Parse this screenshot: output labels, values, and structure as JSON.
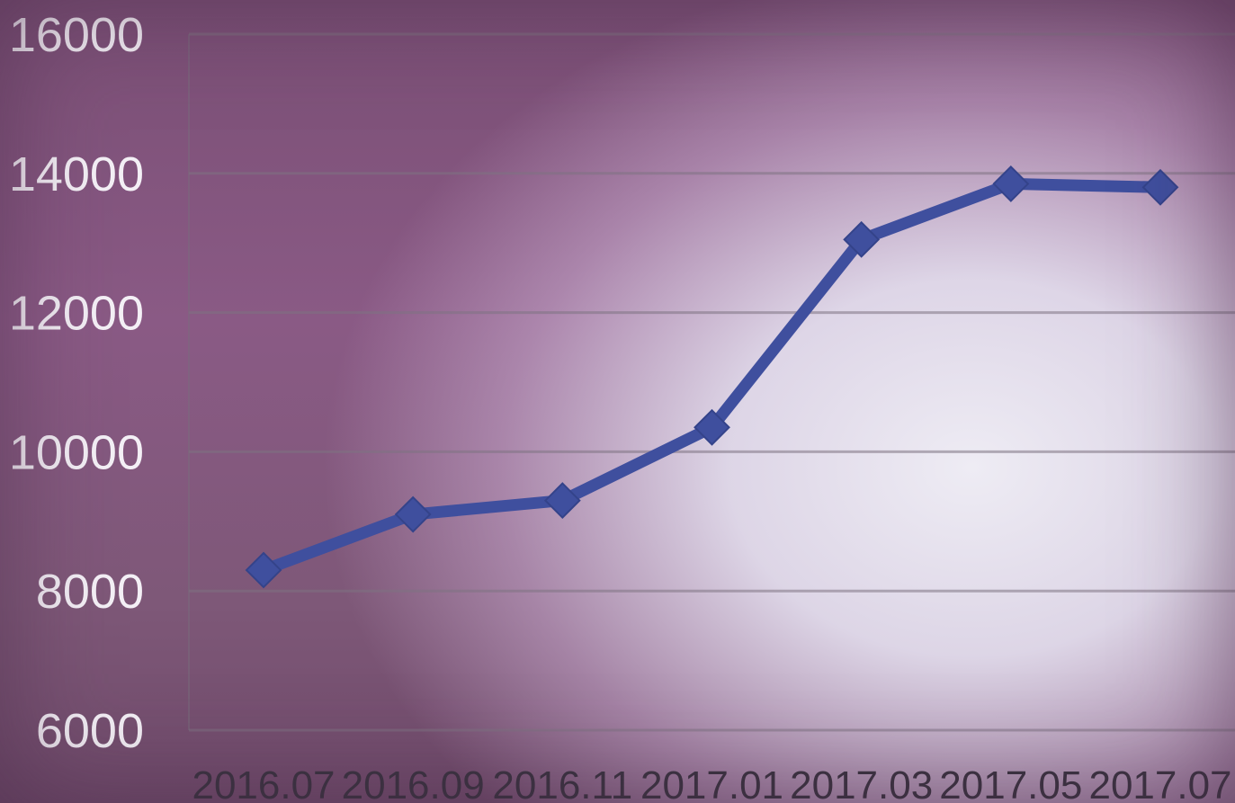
{
  "chart_data": {
    "type": "line",
    "title": "",
    "xlabel": "",
    "ylabel": "",
    "x": [
      "2016.07",
      "2016.09",
      "2016.11",
      "2017.01",
      "2017.03",
      "2017.05",
      "2017.07"
    ],
    "y_ticks": [
      6000,
      8000,
      10000,
      12000,
      14000,
      16000
    ],
    "ylim": [
      6000,
      16000
    ],
    "grid": true,
    "legend": "none",
    "series": [
      {
        "values": [
          8300,
          9100,
          9300,
          10350,
          13050,
          13850,
          13800
        ],
        "color": "#3f4f9e",
        "marker": "diamond"
      }
    ]
  }
}
